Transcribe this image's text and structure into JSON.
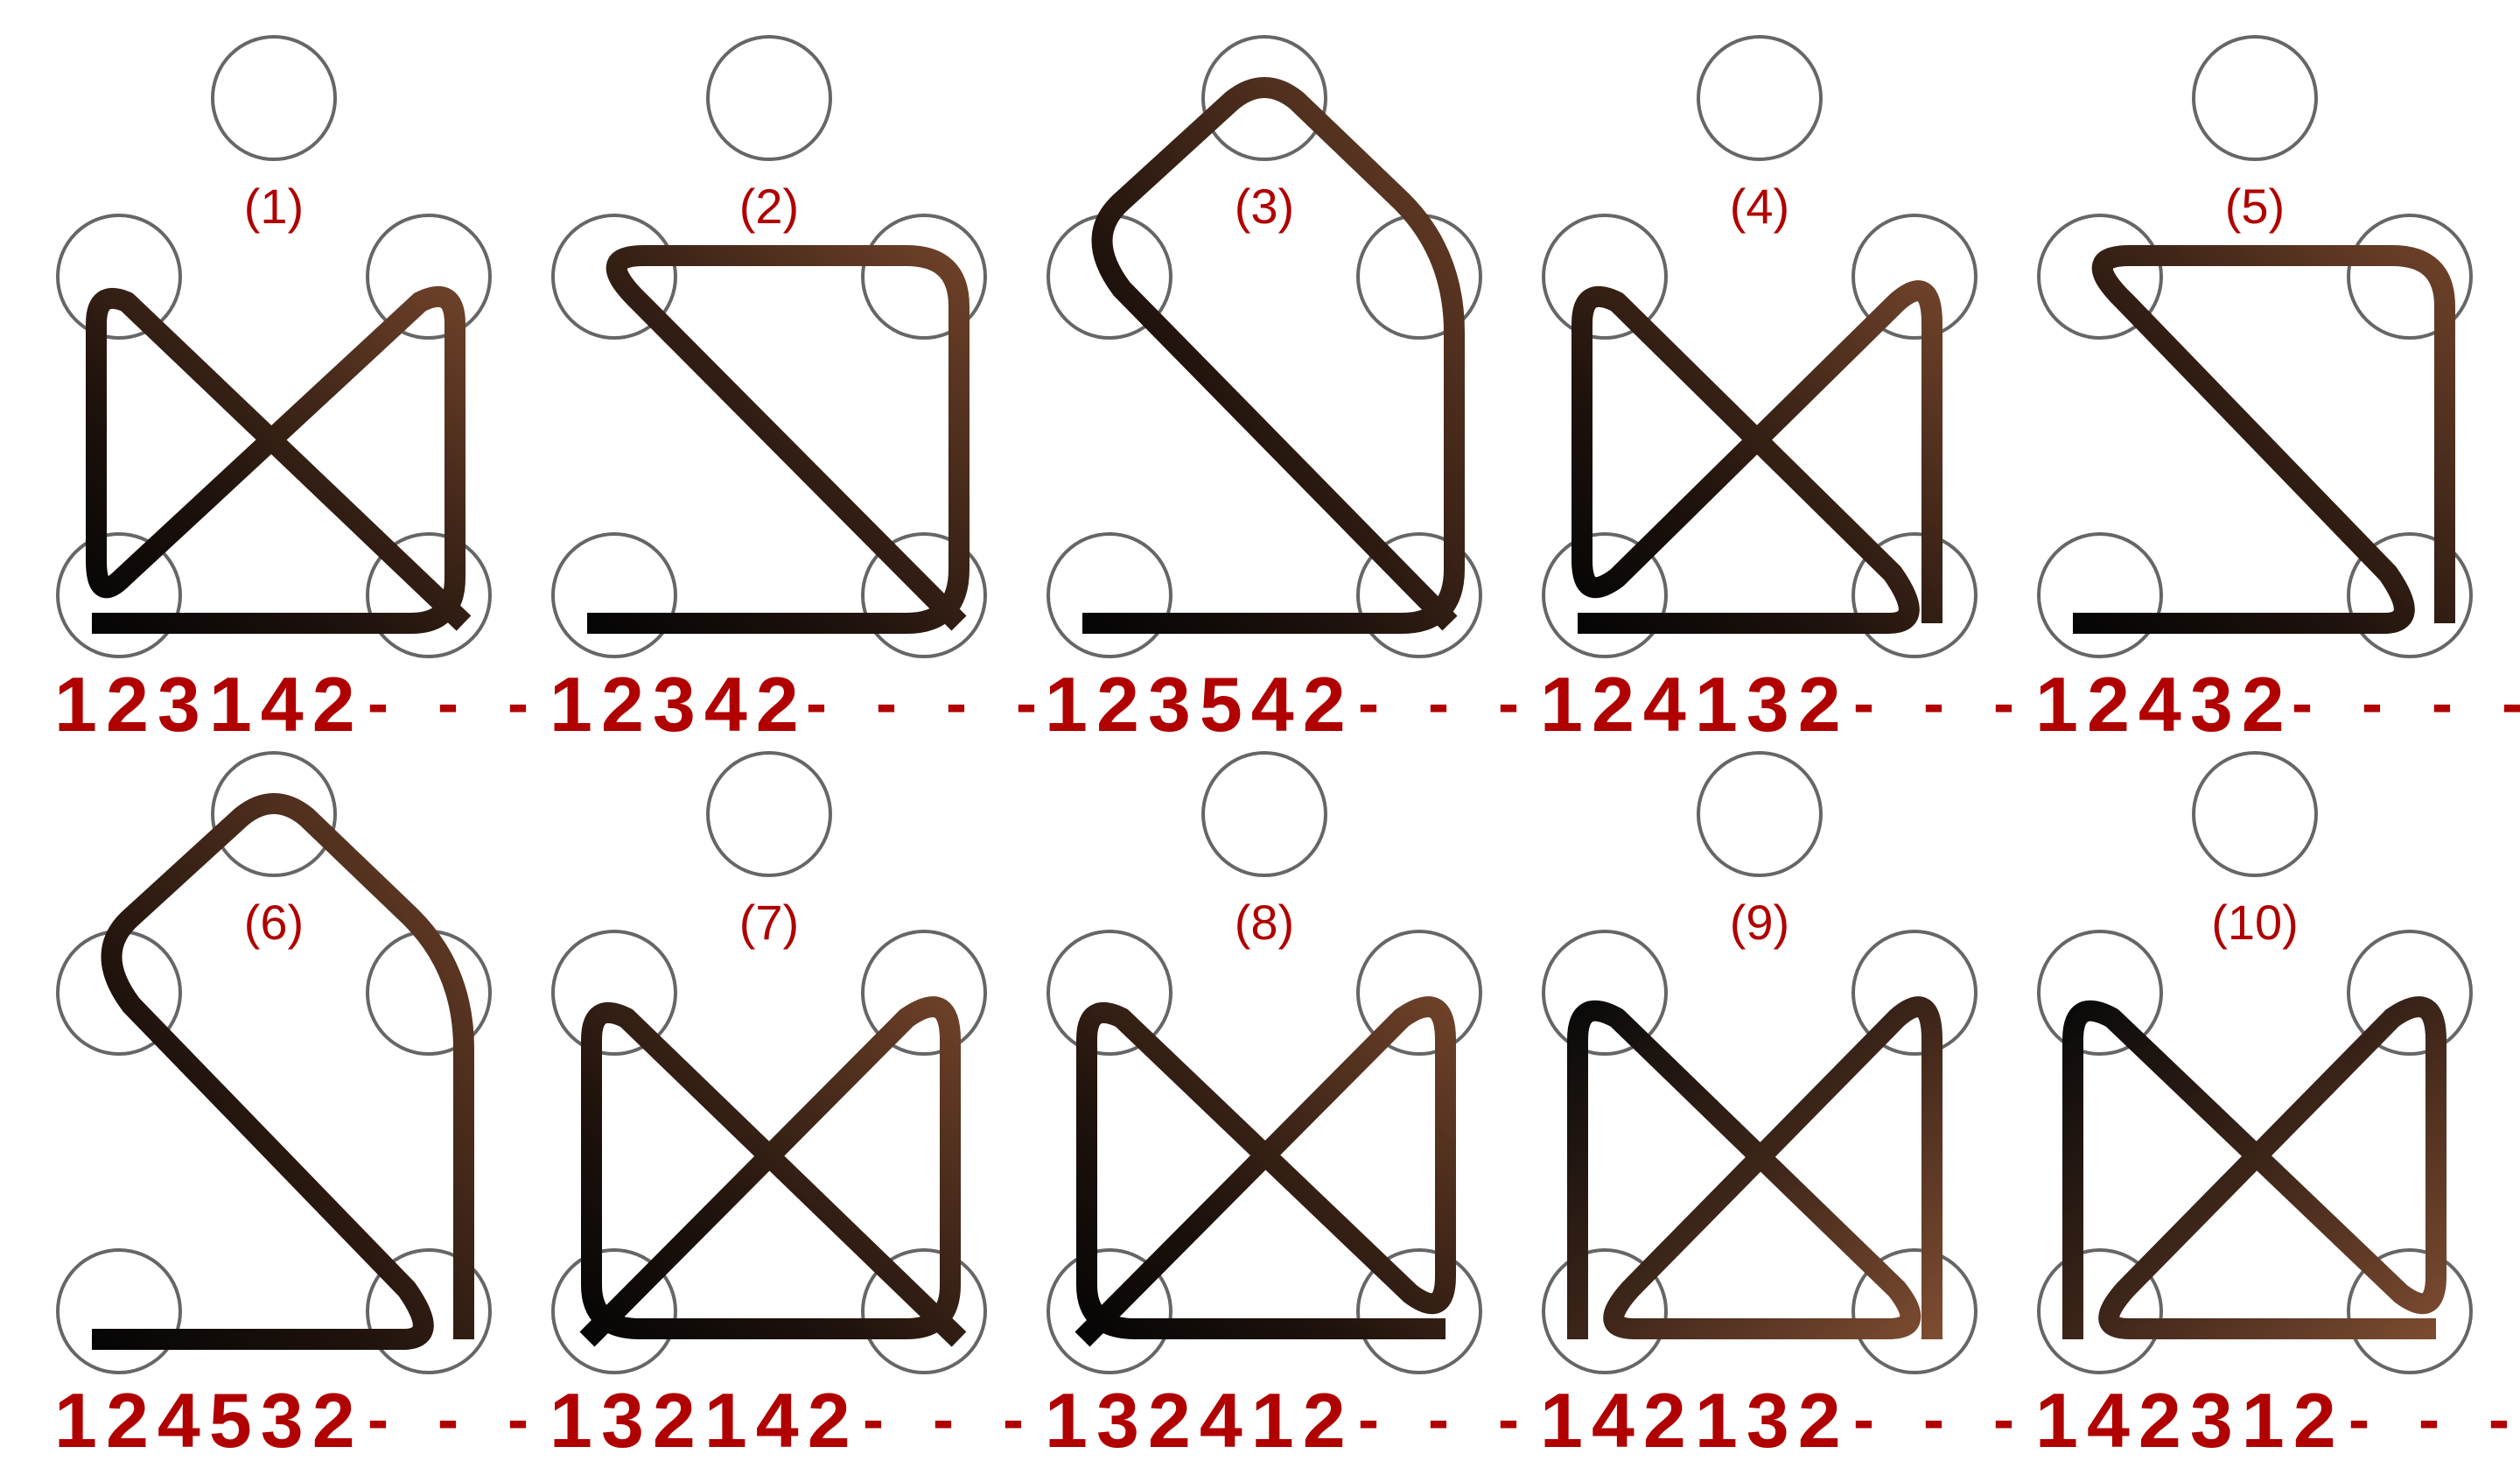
{
  "colors": {
    "peg_stroke": "#666666",
    "label": "#b00000",
    "rope_dark": "#111111",
    "rope_light": "#7a4a30"
  },
  "patterns": [
    {
      "number": "(1)",
      "code": "123142",
      "dashes": "- - -"
    },
    {
      "number": "(2)",
      "code": "12342",
      "dashes": "- - - -"
    },
    {
      "number": "(3)",
      "code": "123542",
      "dashes": "- - -"
    },
    {
      "number": "(4)",
      "code": "124132",
      "dashes": "- - -"
    },
    {
      "number": "(5)",
      "code": "12432",
      "dashes": "- - - -"
    },
    {
      "number": "(6)",
      "code": "124532",
      "dashes": "- - -"
    },
    {
      "number": "(7)",
      "code": "132142",
      "dashes": "- - -"
    },
    {
      "number": "(8)",
      "code": "132412",
      "dashes": "- - -"
    },
    {
      "number": "(9)",
      "code": "142132",
      "dashes": "- - -"
    },
    {
      "number": "(10)",
      "code": "142312",
      "dashes": "- - -"
    }
  ]
}
